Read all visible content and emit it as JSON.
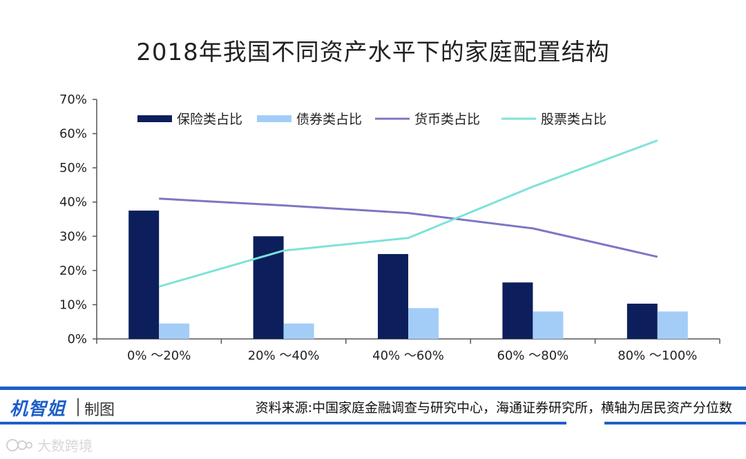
{
  "chart_data": {
    "type": "bar+line",
    "title": "2018年我国不同资产水平下的家庭配置结构",
    "categories": [
      "0% ～20%",
      "20% ～40%",
      "40% ～60%",
      "60% ～80%",
      "80% ～100%"
    ],
    "ylim": [
      0,
      70
    ],
    "yticks": [
      0,
      10,
      20,
      30,
      40,
      50,
      60,
      70
    ],
    "ytick_suffix": "%",
    "xlabel": "",
    "ylabel": "",
    "grid": false,
    "legend_position": "top",
    "series": [
      {
        "name": "保险类占比",
        "kind": "bar",
        "color": "#0c1f5c",
        "values": [
          37.5,
          30.0,
          24.8,
          16.5,
          10.3
        ]
      },
      {
        "name": "债券类占比",
        "kind": "bar",
        "color": "#a3cdf7",
        "values": [
          4.5,
          4.5,
          9.0,
          8.0,
          8.0
        ]
      },
      {
        "name": "货币类占比",
        "kind": "line",
        "color": "#7c77c4",
        "values": [
          41.0,
          39.0,
          36.8,
          32.3,
          24.0
        ]
      },
      {
        "name": "股票类占比",
        "kind": "line",
        "color": "#7de3d8",
        "values": [
          15.3,
          25.8,
          29.5,
          44.5,
          58.0
        ]
      }
    ]
  },
  "footer": {
    "brand": "机智姐",
    "brand_suffix": "制图",
    "source": "资料来源:中国家庭金融调查与研究中心，海通证券研究所，横轴为居民资产分位数",
    "watermark": "大数跨境"
  },
  "colors": {
    "brand_blue": "#1e5fc8"
  }
}
